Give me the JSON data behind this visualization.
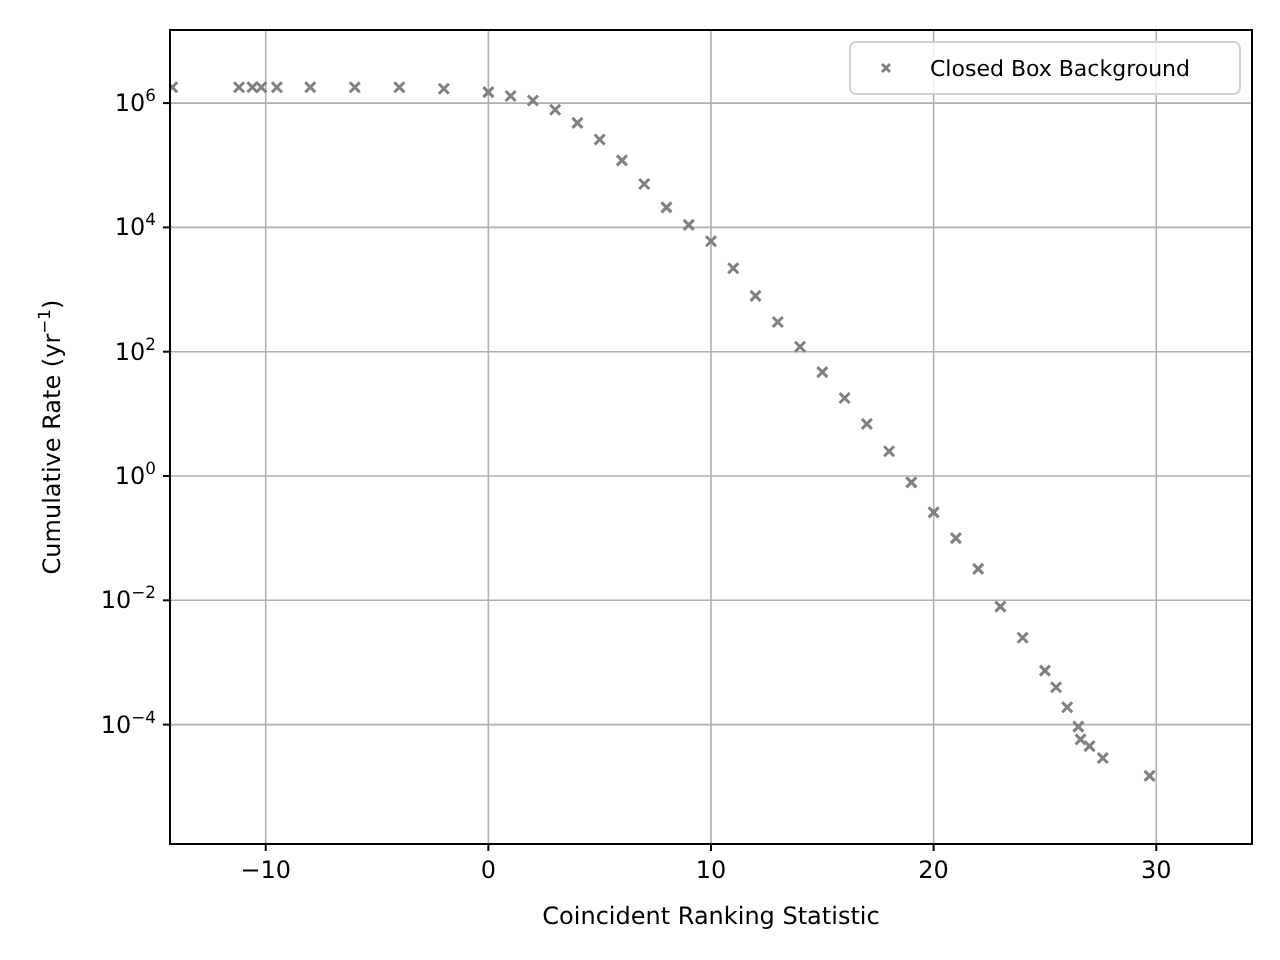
{
  "chart_data": {
    "type": "scatter",
    "xlabel": "Coincident Ranking Statistic",
    "ylabel": "Cumulative Rate (yr$^{−1}$)",
    "log": "y",
    "grid": true,
    "legend": "top right",
    "marker": "cross",
    "xlim": [
      -14.3,
      34.3
    ],
    "ylim": [
      1.2e-06,
      15000000.0
    ],
    "xticks": [
      {
        "value": -10,
        "label": "−10"
      },
      0,
      10,
      20,
      30
    ],
    "yticks": [
      {
        "value": 0.0001,
        "label": "10$^{−4}$"
      },
      {
        "value": 0.01,
        "label": "10$^{−2}$"
      },
      {
        "value": 1,
        "label": "10$^{0}$"
      },
      {
        "value": 100,
        "label": "10$^{2}$"
      },
      {
        "value": 10000.0,
        "label": "10$^{4}$"
      },
      {
        "value": 1000000.0,
        "label": "10$^{6}$"
      }
    ],
    "series": [
      {
        "name": "Closed Box Background",
        "color": "#808080",
        "x": [
          -14.2,
          -11.2,
          -10.6,
          -10.2,
          -9.5,
          -8,
          -6,
          -4,
          -2,
          0,
          1,
          2,
          3,
          4,
          5,
          6,
          7,
          8,
          9,
          10,
          11,
          12,
          13,
          14,
          15,
          16,
          17,
          18,
          19,
          20,
          21,
          22,
          23,
          24,
          25,
          25.5,
          26,
          26.5,
          26.6,
          27.0,
          27.6,
          29.7
        ],
        "values": [
          1800000.0,
          1800000.0,
          1800000.0,
          1800000.0,
          1800000.0,
          1800000.0,
          1800000.0,
          1800000.0,
          1700000.0,
          1500000.0,
          1300000.0,
          1100000.0,
          780000.0,
          480000.0,
          260000.0,
          120000.0,
          50000.0,
          21000.0,
          11000.0,
          6000.0,
          2200.0,
          790,
          300,
          120,
          47,
          18,
          6.9,
          2.5,
          0.79,
          0.26,
          0.1,
          0.032,
          0.0079,
          0.0025,
          0.00074,
          0.0004,
          0.00019,
          9.3e-05,
          5.8e-05,
          4.5e-05,
          2.9e-05,
          1.5e-05
        ]
      }
    ]
  }
}
